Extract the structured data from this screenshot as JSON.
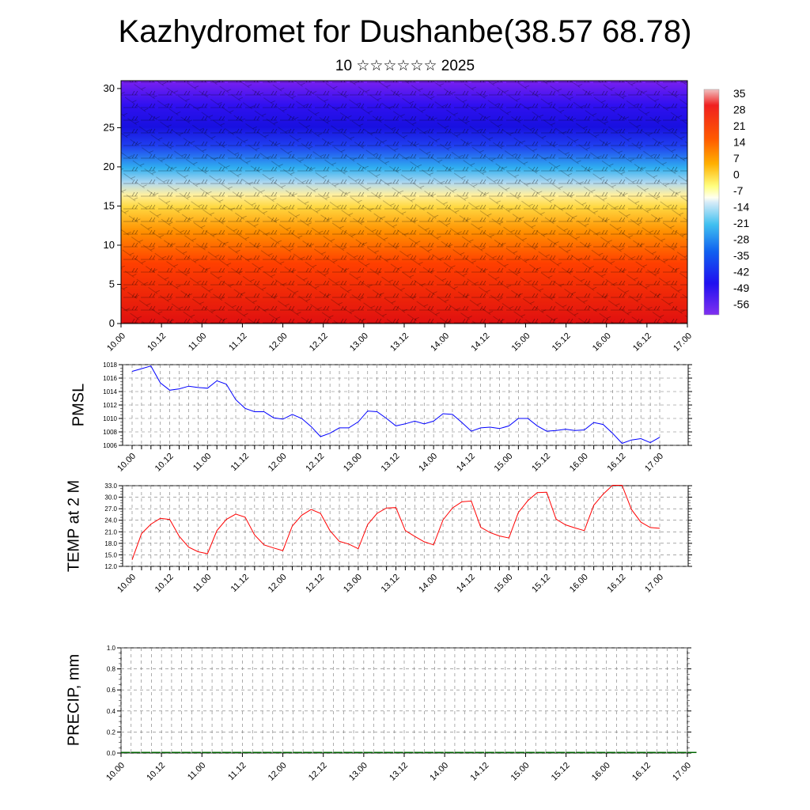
{
  "title": "Kazhydromet for Dushanbe(38.57 68.78)",
  "subtitle": "10 ☆☆☆☆☆☆ 2025",
  "chart_data": [
    {
      "type": "heatmap",
      "name": "vertical-cross-section",
      "y_ticks": [
        0,
        5,
        10,
        15,
        20,
        25,
        30
      ],
      "ylim": [
        0,
        31
      ],
      "x_ticks": [
        "10.00",
        "10.12",
        "11.00",
        "11.12",
        "12.00",
        "12.12",
        "13.00",
        "13.12",
        "14.00",
        "14.12",
        "15.00",
        "15.12",
        "16.00",
        "16.12",
        "17.00"
      ],
      "colorbar_labels": [
        "35",
        "28",
        "21",
        "14",
        "7",
        "0",
        "-7",
        "-14",
        "-21",
        "-28",
        "-35",
        "-42",
        "-49",
        "-56"
      ],
      "colors": [
        "#e0b0b0",
        "#f02020",
        "#ff7000",
        "#ffd840",
        "#ffffb0",
        "#b0d8f0",
        "#30b0f0",
        "#1850f0",
        "#3010f0",
        "#7a20f0"
      ],
      "overlay": "wind barbs"
    },
    {
      "type": "line",
      "ylabel": "PMSL",
      "ylim": [
        1006,
        1018
      ],
      "y_ticks": [
        "1018",
        "1016",
        "1014",
        "1012",
        "1010",
        "1008",
        "1006"
      ],
      "x_ticks": [
        "10.00",
        "10.12",
        "11.00",
        "11.12",
        "12.00",
        "12.12",
        "13.00",
        "13.12",
        "14.00",
        "14.12",
        "15.00",
        "15.12",
        "16.00",
        "16.12",
        "17.00"
      ],
      "color": "#0000ff",
      "values": [
        1017.0,
        1017.4,
        1017.8,
        1015.3,
        1014.2,
        1014.4,
        1014.8,
        1014.6,
        1014.5,
        1015.6,
        1015.1,
        1012.8,
        1011.5,
        1011.0,
        1011.0,
        1010.1,
        1009.9,
        1010.6,
        1010.0,
        1008.8,
        1007.3,
        1007.8,
        1008.6,
        1008.6,
        1009.5,
        1011.1,
        1011.0,
        1010.0,
        1008.9,
        1009.2,
        1009.6,
        1009.2,
        1009.6,
        1010.7,
        1010.6,
        1009.4,
        1008.1,
        1008.6,
        1008.7,
        1008.5,
        1008.9,
        1010.0,
        1010.0,
        1008.9,
        1008.1,
        1008.2,
        1008.4,
        1008.2,
        1008.3,
        1009.4,
        1009.1,
        1007.8,
        1006.3,
        1006.8,
        1007.0,
        1006.4,
        1007.2
      ]
    },
    {
      "type": "line",
      "ylabel": "TEMP at 2 M",
      "ylim": [
        12,
        33
      ],
      "y_ticks": [
        "33.0",
        "30.0",
        "27.0",
        "24.0",
        "21.0",
        "18.0",
        "15.0",
        "12.0"
      ],
      "x_ticks": [
        "10.00",
        "10.12",
        "11.00",
        "11.12",
        "12.00",
        "12.12",
        "13.00",
        "13.12",
        "14.00",
        "14.12",
        "15.00",
        "15.12",
        "16.00",
        "16.12",
        "17.00"
      ],
      "color": "#ff0000",
      "values": [
        13.7,
        20.5,
        23.0,
        24.5,
        24.2,
        19.8,
        17.0,
        15.8,
        15.3,
        21.3,
        24.2,
        25.6,
        24.8,
        20.2,
        17.6,
        16.8,
        16.1,
        22.5,
        25.3,
        26.8,
        25.8,
        21.3,
        18.5,
        17.8,
        16.6,
        22.9,
        25.8,
        27.2,
        27.3,
        21.3,
        19.8,
        18.4,
        17.6,
        24.1,
        27.2,
        28.8,
        29.0,
        22.2,
        20.8,
        19.9,
        19.4,
        26.0,
        29.1,
        31.2,
        31.3,
        24.3,
        22.8,
        22.0,
        21.3,
        27.9,
        30.8,
        33.1,
        33.1,
        26.8,
        23.5,
        22.1,
        21.9
      ]
    },
    {
      "type": "bar",
      "ylabel": "PRECIP, mm",
      "ylim": [
        0,
        1.0
      ],
      "y_ticks": [
        "1.0",
        "0.8",
        "0.6",
        "0.4",
        "0.2",
        "0.0"
      ],
      "x_ticks": [
        "10.00",
        "10.12",
        "11.00",
        "11.12",
        "12.00",
        "12.12",
        "13.00",
        "13.12",
        "14.00",
        "14.12",
        "15.00",
        "15.12",
        "16.00",
        "16.12",
        "17.00"
      ],
      "values": [
        0,
        0,
        0,
        0,
        0,
        0,
        0,
        0,
        0,
        0,
        0,
        0,
        0,
        0,
        0,
        0,
        0,
        0,
        0,
        0,
        0,
        0,
        0,
        0,
        0,
        0,
        0,
        0,
        0,
        0,
        0,
        0,
        0,
        0,
        0,
        0,
        0,
        0,
        0,
        0,
        0,
        0,
        0,
        0,
        0,
        0,
        0,
        0,
        0,
        0,
        0,
        0,
        0,
        0,
        0,
        0,
        0
      ]
    }
  ]
}
